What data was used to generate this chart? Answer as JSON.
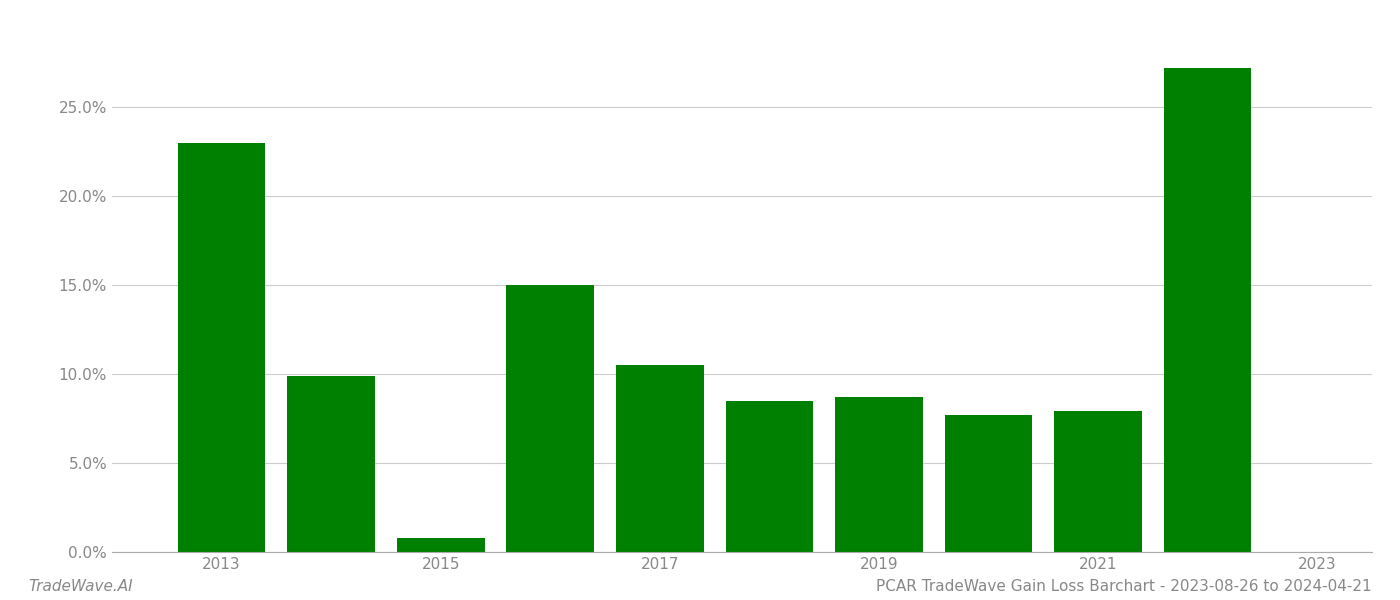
{
  "years": [
    2013,
    2014,
    2015,
    2016,
    2017,
    2018,
    2019,
    2020,
    2021,
    2022
  ],
  "values": [
    0.23,
    0.099,
    0.008,
    0.15,
    0.105,
    0.085,
    0.087,
    0.077,
    0.079,
    0.272
  ],
  "bar_color": "#008000",
  "background_color": "#ffffff",
  "title": "PCAR TradeWave Gain Loss Barchart - 2023-08-26 to 2024-04-21",
  "watermark": "TradeWave.AI",
  "ylim": [
    0,
    0.3
  ],
  "yticks": [
    0.0,
    0.05,
    0.1,
    0.15,
    0.2,
    0.25
  ],
  "xlim": [
    2012.0,
    2023.5
  ],
  "xtick_labels": [
    "2013",
    "",
    "2015",
    "",
    "2017",
    "",
    "2019",
    "",
    "2021",
    "",
    "2023"
  ],
  "xtick_positions": [
    2013,
    2014,
    2015,
    2016,
    2017,
    2018,
    2019,
    2020,
    2021,
    2022,
    2023
  ],
  "grid_color": "#cccccc",
  "title_fontsize": 11,
  "watermark_fontsize": 11,
  "tick_fontsize": 11,
  "bar_width": 0.8
}
